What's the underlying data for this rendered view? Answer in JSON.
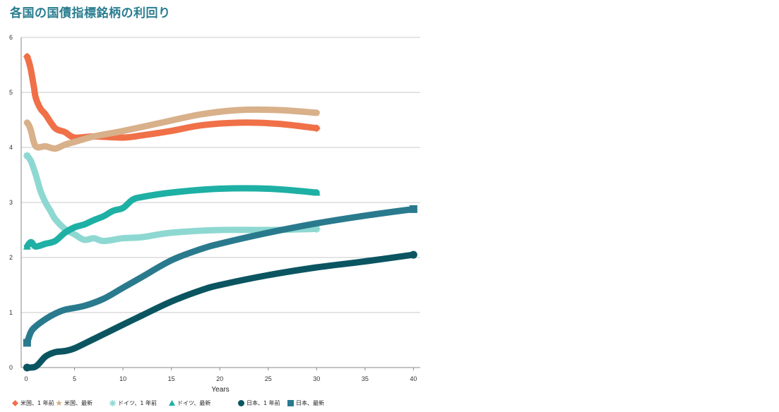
{
  "title": "各国の国債指標銘柄の利回り",
  "chart_data": {
    "type": "line",
    "title": "各国の国債指標銘柄の利回り",
    "xlabel": "Years",
    "ylabel": "",
    "xlim": [
      0,
      40
    ],
    "ylim": [
      0,
      6
    ],
    "xticks": [
      0,
      5,
      10,
      15,
      20,
      25,
      30,
      35,
      40
    ],
    "yticks": [
      0,
      1,
      2,
      3,
      4,
      5,
      6
    ],
    "grid": "horizontal",
    "legend_position": "bottom",
    "series": [
      {
        "name": "米国、1 年前",
        "color": "#f07048",
        "marker": "diamond",
        "points": [
          [
            0.1,
            5.65
          ],
          [
            0.3,
            5.55
          ],
          [
            0.5,
            5.4
          ],
          [
            0.8,
            5.1
          ],
          [
            1,
            4.9
          ],
          [
            1.5,
            4.7
          ],
          [
            2,
            4.6
          ],
          [
            3,
            4.35
          ],
          [
            4,
            4.28
          ],
          [
            5,
            4.18
          ],
          [
            7,
            4.2
          ],
          [
            10,
            4.18
          ],
          [
            12,
            4.22
          ],
          [
            15,
            4.3
          ],
          [
            18,
            4.4
          ],
          [
            22,
            4.45
          ],
          [
            26,
            4.43
          ],
          [
            30,
            4.35
          ]
        ]
      },
      {
        "name": "米国、最新",
        "color": "#d8b08a",
        "marker": "star",
        "points": [
          [
            0.1,
            4.45
          ],
          [
            0.3,
            4.4
          ],
          [
            0.5,
            4.3
          ],
          [
            1,
            4.02
          ],
          [
            2,
            4.02
          ],
          [
            3,
            3.98
          ],
          [
            4,
            4.05
          ],
          [
            5,
            4.1
          ],
          [
            7,
            4.2
          ],
          [
            10,
            4.3
          ],
          [
            14,
            4.45
          ],
          [
            18,
            4.6
          ],
          [
            22,
            4.68
          ],
          [
            26,
            4.68
          ],
          [
            30,
            4.63
          ]
        ]
      },
      {
        "name": "ドイツ、1 年前",
        "color": "#8ed8d2",
        "marker": "asterisk",
        "points": [
          [
            0.1,
            3.85
          ],
          [
            0.5,
            3.75
          ],
          [
            1,
            3.5
          ],
          [
            1.5,
            3.2
          ],
          [
            2,
            3.0
          ],
          [
            2.5,
            2.85
          ],
          [
            3,
            2.7
          ],
          [
            4,
            2.52
          ],
          [
            5,
            2.42
          ],
          [
            6,
            2.32
          ],
          [
            7,
            2.35
          ],
          [
            8,
            2.3
          ],
          [
            10,
            2.35
          ],
          [
            12,
            2.37
          ],
          [
            15,
            2.45
          ],
          [
            20,
            2.5
          ],
          [
            25,
            2.5
          ],
          [
            30,
            2.52
          ]
        ]
      },
      {
        "name": "ドイツ、最新",
        "color": "#1eb0a4",
        "marker": "triangle",
        "points": [
          [
            0.1,
            2.2
          ],
          [
            0.5,
            2.28
          ],
          [
            1,
            2.2
          ],
          [
            2,
            2.25
          ],
          [
            3,
            2.3
          ],
          [
            4,
            2.45
          ],
          [
            5,
            2.55
          ],
          [
            6,
            2.6
          ],
          [
            7,
            2.68
          ],
          [
            8,
            2.75
          ],
          [
            9,
            2.85
          ],
          [
            10,
            2.9
          ],
          [
            11,
            3.05
          ],
          [
            12,
            3.1
          ],
          [
            15,
            3.18
          ],
          [
            20,
            3.25
          ],
          [
            25,
            3.25
          ],
          [
            30,
            3.18
          ]
        ]
      },
      {
        "name": "日本、1 年前",
        "color": "#0b5561",
        "marker": "circle",
        "points": [
          [
            0.1,
            0.0
          ],
          [
            1,
            0.02
          ],
          [
            2,
            0.2
          ],
          [
            3,
            0.28
          ],
          [
            4,
            0.3
          ],
          [
            5,
            0.35
          ],
          [
            7,
            0.52
          ],
          [
            10,
            0.78
          ],
          [
            12,
            0.95
          ],
          [
            15,
            1.2
          ],
          [
            18,
            1.4
          ],
          [
            20,
            1.5
          ],
          [
            25,
            1.68
          ],
          [
            30,
            1.82
          ],
          [
            35,
            1.93
          ],
          [
            40,
            2.05
          ]
        ]
      },
      {
        "name": "日本、最新",
        "color": "#2a7a8e",
        "marker": "square",
        "points": [
          [
            0.1,
            0.45
          ],
          [
            0.5,
            0.65
          ],
          [
            1,
            0.75
          ],
          [
            2,
            0.88
          ],
          [
            3,
            0.98
          ],
          [
            4,
            1.05
          ],
          [
            6,
            1.12
          ],
          [
            8,
            1.25
          ],
          [
            10,
            1.45
          ],
          [
            12,
            1.65
          ],
          [
            15,
            1.95
          ],
          [
            18,
            2.15
          ],
          [
            20,
            2.25
          ],
          [
            25,
            2.45
          ],
          [
            30,
            2.62
          ],
          [
            35,
            2.76
          ],
          [
            40,
            2.88
          ]
        ]
      }
    ]
  }
}
